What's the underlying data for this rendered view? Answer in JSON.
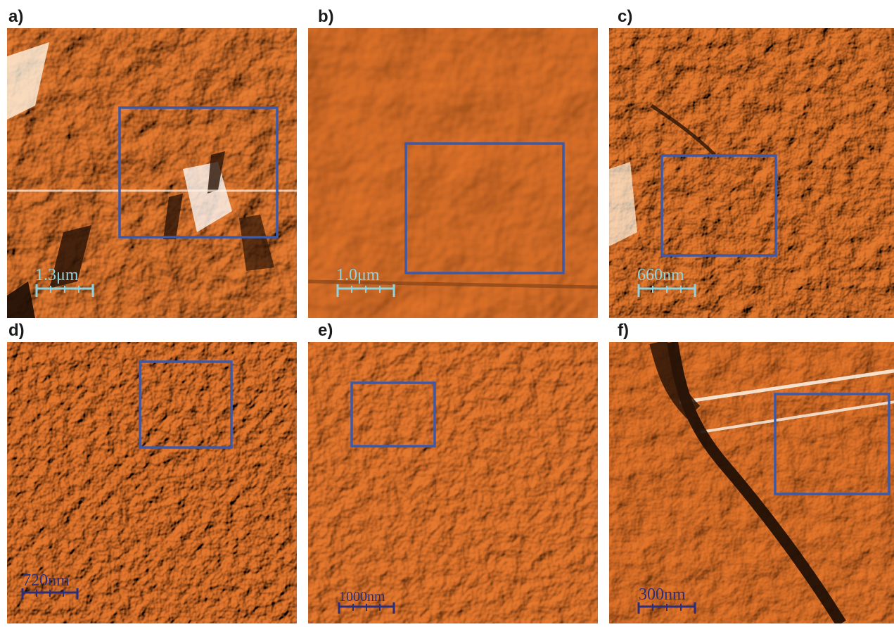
{
  "panels": [
    {
      "id": "a",
      "label": "a)",
      "scale_text": "1.3μm",
      "scale_color": "#8fd4de"
    },
    {
      "id": "b",
      "label": "b)",
      "scale_text": "1.0μm",
      "scale_color": "#8fd4de"
    },
    {
      "id": "c",
      "label": "c)",
      "scale_text": "660nm",
      "scale_color": "#8fd4de"
    },
    {
      "id": "d",
      "label": "d)",
      "scale_text": "720nm",
      "scale_color": "#2b2f7a"
    },
    {
      "id": "e",
      "label": "e)",
      "scale_text": "1000nm",
      "scale_color": "#2b2f7a"
    },
    {
      "id": "f",
      "label": "f)",
      "scale_text": "300nm",
      "scale_color": "#2b2f7a"
    }
  ],
  "colors": {
    "surface_base": "#d98a4a",
    "surface_light": "#f2c596",
    "surface_dark": "#8a4a1c",
    "highlight_box": "#3c5aa8"
  }
}
